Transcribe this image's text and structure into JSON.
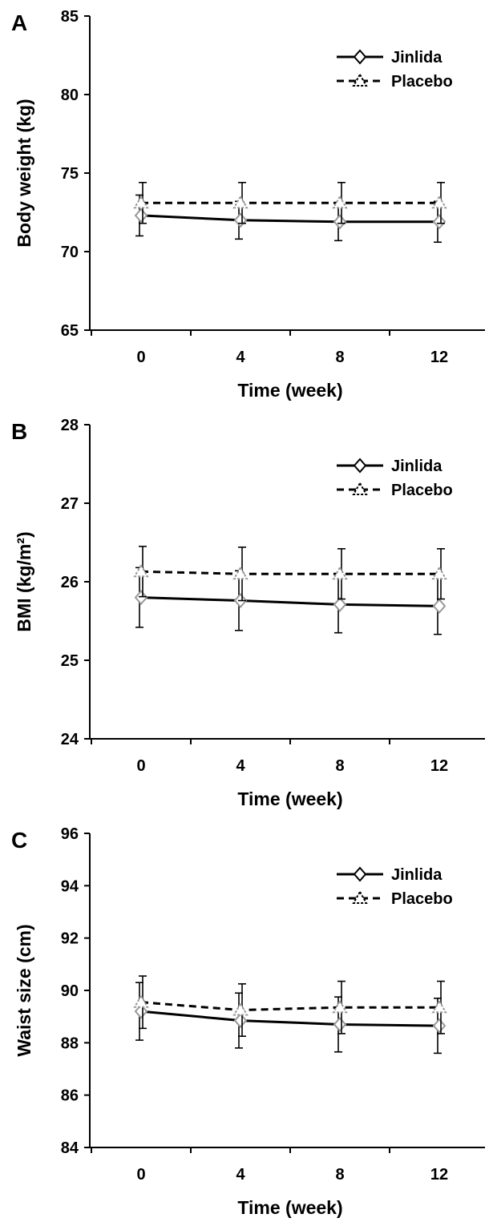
{
  "chart_data": [
    {
      "type": "line",
      "panel_label": "A",
      "xlabel": "Time (week)",
      "ylabel": "Body weight (kg)",
      "x": [
        0,
        4,
        8,
        12
      ],
      "ylim": [
        65,
        85
      ],
      "yticks": [
        65,
        70,
        75,
        80,
        85
      ],
      "legend_position": "top-right",
      "grid": false,
      "series": [
        {
          "name": "Jinlida",
          "values": [
            72.3,
            72.0,
            71.9,
            71.9
          ],
          "error": [
            1.3,
            1.2,
            1.2,
            1.3
          ],
          "marker": "diamond",
          "line_style": "solid"
        },
        {
          "name": "Placebo",
          "values": [
            73.1,
            73.1,
            73.1,
            73.1
          ],
          "error": [
            1.3,
            1.3,
            1.3,
            1.3
          ],
          "marker": "triangle",
          "line_style": "dashed"
        }
      ]
    },
    {
      "type": "line",
      "panel_label": "B",
      "xlabel": "Time (week)",
      "ylabel": "BMI (kg/m²)",
      "x": [
        0,
        4,
        8,
        12
      ],
      "ylim": [
        24,
        28
      ],
      "yticks": [
        24,
        25,
        26,
        27,
        28
      ],
      "legend_position": "top-right",
      "grid": false,
      "series": [
        {
          "name": "Jinlida",
          "values": [
            25.8,
            25.76,
            25.71,
            25.69
          ],
          "error": [
            0.38,
            0.38,
            0.36,
            0.36
          ],
          "marker": "diamond",
          "line_style": "solid"
        },
        {
          "name": "Placebo",
          "values": [
            26.13,
            26.1,
            26.1,
            26.1
          ],
          "error": [
            0.32,
            0.34,
            0.32,
            0.32
          ],
          "marker": "triangle",
          "line_style": "dashed"
        }
      ]
    },
    {
      "type": "line",
      "panel_label": "C",
      "xlabel": "Time (week)",
      "ylabel": "Waist size (cm)",
      "x": [
        0,
        4,
        8,
        12
      ],
      "ylim": [
        84,
        96
      ],
      "yticks": [
        84,
        86,
        88,
        90,
        92,
        94,
        96
      ],
      "legend_position": "top-right",
      "grid": false,
      "series": [
        {
          "name": "Jinlida",
          "values": [
            89.2,
            88.85,
            88.7,
            88.65
          ],
          "error": [
            1.1,
            1.05,
            1.05,
            1.05
          ],
          "marker": "diamond",
          "line_style": "solid"
        },
        {
          "name": "Placebo",
          "values": [
            89.55,
            89.25,
            89.35,
            89.35
          ],
          "error": [
            1.0,
            1.0,
            1.0,
            1.0
          ],
          "marker": "triangle",
          "line_style": "dashed"
        }
      ]
    }
  ]
}
